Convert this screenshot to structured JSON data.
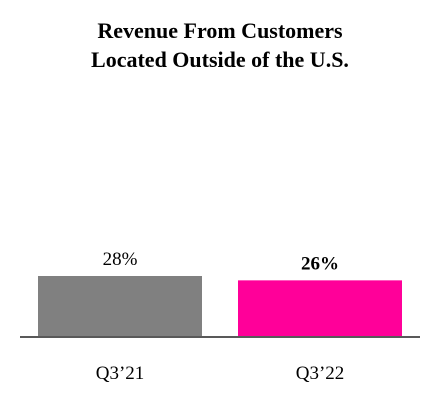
{
  "chart_data": {
    "type": "bar",
    "title_lines": [
      "Revenue From Customers",
      "Located Outside of the U.S."
    ],
    "categories": [
      "Q3’21",
      "Q3’22"
    ],
    "values": [
      28,
      26
    ],
    "data_labels": [
      "28%",
      "26%"
    ],
    "bold_labels": [
      false,
      true
    ],
    "colors": [
      "#808080",
      "#ff0099"
    ],
    "axis_color": "#595959",
    "xlabel": "",
    "ylabel": "",
    "grid": false,
    "legend": "none"
  }
}
